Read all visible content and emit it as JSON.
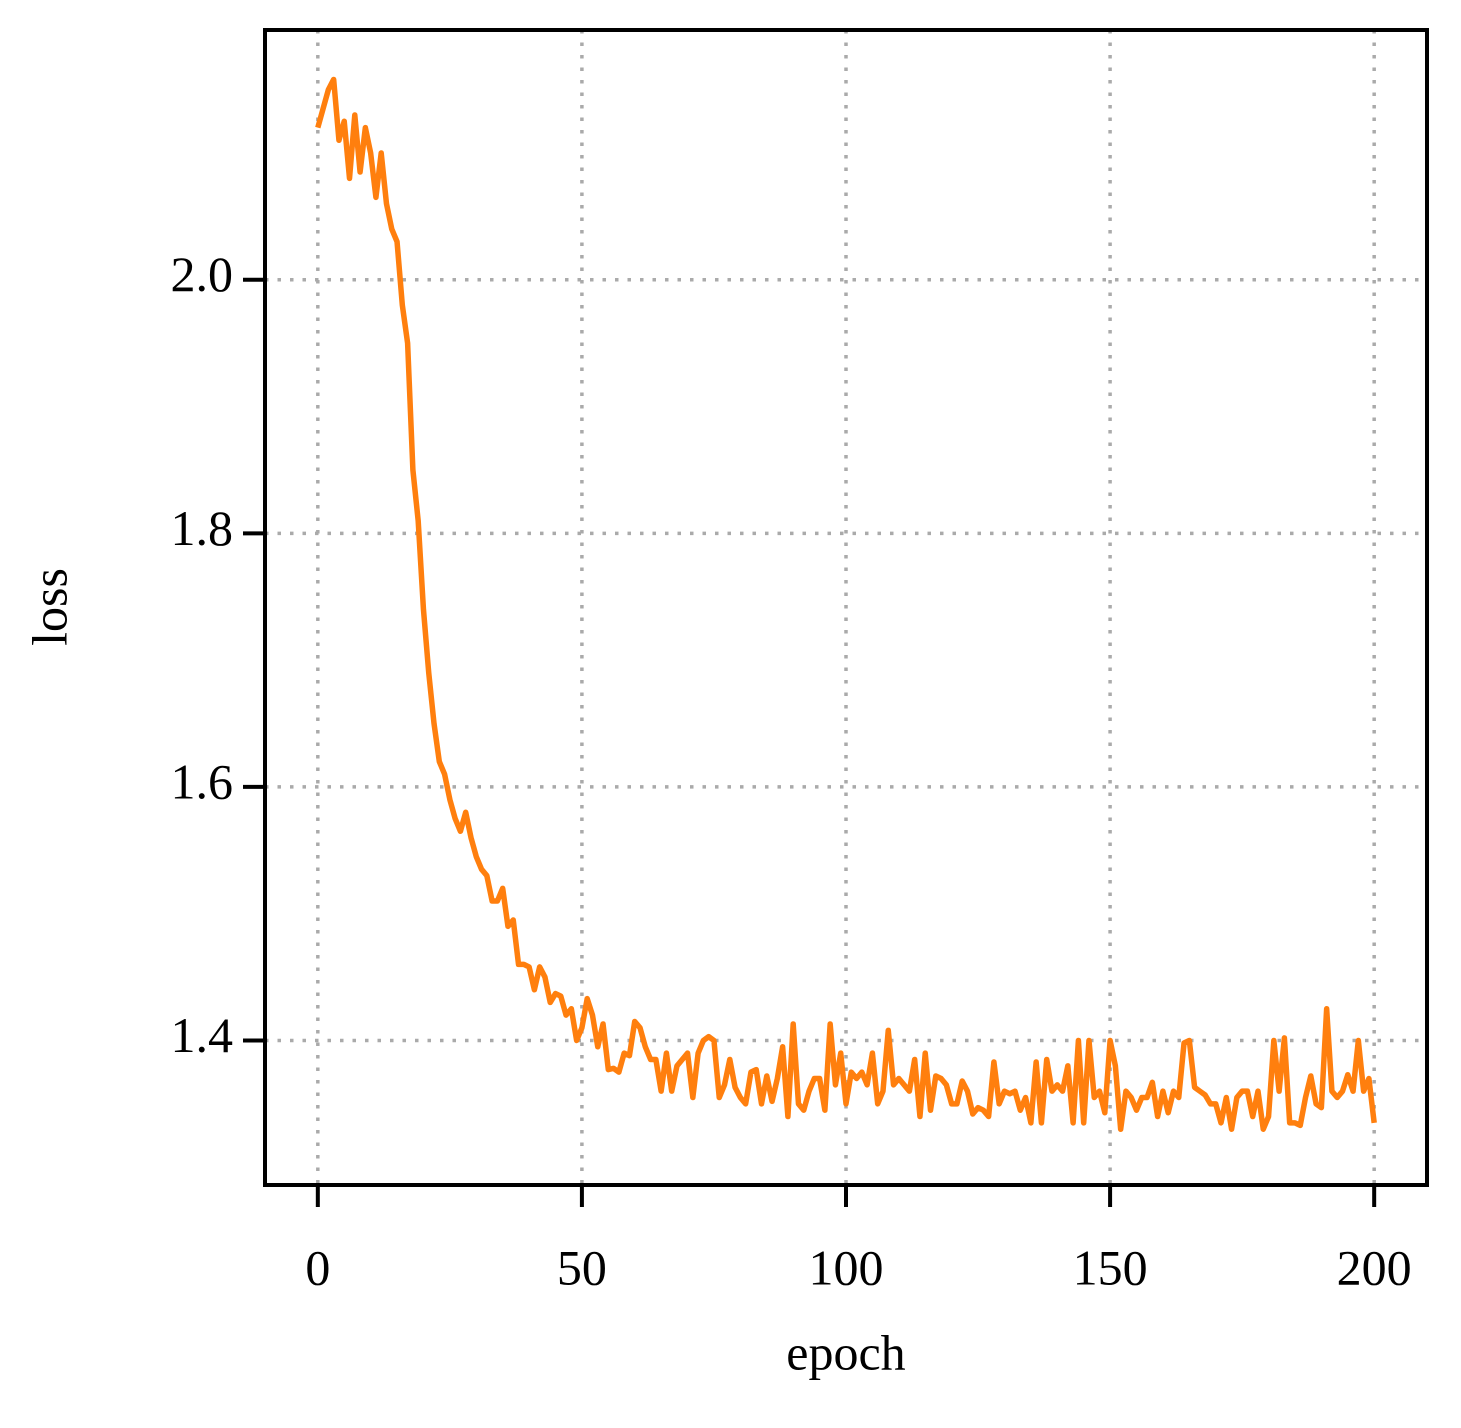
{
  "chart_data": {
    "type": "line",
    "xlabel": "epoch",
    "ylabel": "loss",
    "x": [
      0,
      1,
      2,
      3,
      4,
      5,
      6,
      7,
      8,
      9,
      10,
      11,
      12,
      13,
      14,
      15,
      16,
      17,
      18,
      19,
      20,
      21,
      22,
      23,
      24,
      25,
      26,
      27,
      28,
      29,
      30,
      31,
      32,
      33,
      34,
      35,
      36,
      37,
      38,
      39,
      40,
      41,
      42,
      43,
      44,
      45,
      46,
      47,
      48,
      49,
      50,
      51,
      52,
      53,
      54,
      55,
      56,
      57,
      58,
      59,
      60,
      61,
      62,
      63,
      64,
      65,
      66,
      67,
      68,
      69,
      70,
      71,
      72,
      73,
      74,
      75,
      76,
      77,
      78,
      79,
      80,
      81,
      82,
      83,
      84,
      85,
      86,
      87,
      88,
      89,
      90,
      91,
      92,
      93,
      94,
      95,
      96,
      97,
      98,
      99,
      100,
      101,
      102,
      103,
      104,
      105,
      106,
      107,
      108,
      109,
      110,
      111,
      112,
      113,
      114,
      115,
      116,
      117,
      118,
      119,
      120,
      121,
      122,
      123,
      124,
      125,
      126,
      127,
      128,
      129,
      130,
      131,
      132,
      133,
      134,
      135,
      136,
      137,
      138,
      139,
      140,
      141,
      142,
      143,
      144,
      145,
      146,
      147,
      148,
      149,
      150,
      151,
      152,
      153,
      154,
      155,
      156,
      157,
      158,
      159,
      160,
      161,
      162,
      163,
      164,
      165,
      166,
      167,
      168,
      169,
      170,
      171,
      172,
      173,
      174,
      175,
      176,
      177,
      178,
      179,
      180,
      181,
      182,
      183,
      184,
      185,
      186,
      187,
      188,
      189,
      190,
      191,
      192,
      193,
      194,
      195,
      196,
      197,
      198,
      199,
      200
    ],
    "series": [
      {
        "color": "#ff7f0e",
        "values": [
          2.12,
          2.135,
          2.15,
          2.158,
          2.11,
          2.125,
          2.08,
          2.13,
          2.085,
          2.12,
          2.1,
          2.065,
          2.1,
          2.06,
          2.04,
          2.03,
          1.98,
          1.95,
          1.85,
          1.81,
          1.74,
          1.69,
          1.65,
          1.62,
          1.61,
          1.59,
          1.575,
          1.565,
          1.58,
          1.56,
          1.545,
          1.535,
          1.53,
          1.51,
          1.51,
          1.52,
          1.49,
          1.495,
          1.46,
          1.46,
          1.458,
          1.44,
          1.458,
          1.45,
          1.43,
          1.437,
          1.435,
          1.42,
          1.425,
          1.4,
          1.41,
          1.433,
          1.42,
          1.395,
          1.413,
          1.377,
          1.378,
          1.375,
          1.39,
          1.388,
          1.415,
          1.41,
          1.395,
          1.385,
          1.385,
          1.36,
          1.39,
          1.36,
          1.38,
          1.385,
          1.39,
          1.355,
          1.39,
          1.4,
          1.403,
          1.4,
          1.355,
          1.365,
          1.385,
          1.363,
          1.355,
          1.35,
          1.375,
          1.377,
          1.35,
          1.372,
          1.352,
          1.37,
          1.395,
          1.34,
          1.413,
          1.35,
          1.345,
          1.36,
          1.37,
          1.37,
          1.345,
          1.413,
          1.365,
          1.39,
          1.35,
          1.375,
          1.37,
          1.375,
          1.365,
          1.39,
          1.35,
          1.36,
          1.408,
          1.365,
          1.37,
          1.365,
          1.36,
          1.385,
          1.34,
          1.39,
          1.345,
          1.372,
          1.37,
          1.365,
          1.35,
          1.35,
          1.368,
          1.36,
          1.342,
          1.347,
          1.345,
          1.34,
          1.383,
          1.35,
          1.36,
          1.358,
          1.36,
          1.345,
          1.355,
          1.335,
          1.383,
          1.335,
          1.385,
          1.36,
          1.365,
          1.36,
          1.38,
          1.335,
          1.4,
          1.335,
          1.4,
          1.355,
          1.36,
          1.343,
          1.4,
          1.38,
          1.33,
          1.36,
          1.355,
          1.345,
          1.355,
          1.355,
          1.367,
          1.34,
          1.36,
          1.343,
          1.36,
          1.355,
          1.398,
          1.4,
          1.363,
          1.36,
          1.357,
          1.35,
          1.35,
          1.335,
          1.355,
          1.33,
          1.355,
          1.36,
          1.36,
          1.34,
          1.36,
          1.33,
          1.34,
          1.4,
          1.36,
          1.402,
          1.335,
          1.335,
          1.333,
          1.355,
          1.372,
          1.35,
          1.347,
          1.425,
          1.36,
          1.355,
          1.36,
          1.373,
          1.36,
          1.4,
          1.36,
          1.37,
          1.335
        ]
      }
    ],
    "xlim": [
      -10,
      210
    ],
    "ylim": [
      1.286,
      2.197
    ],
    "xticks": [
      0,
      50,
      100,
      150,
      200
    ],
    "yticks": [
      {
        "value": 1.4,
        "label": "1.4"
      },
      {
        "value": 1.6,
        "label": "1.6"
      },
      {
        "value": 1.8,
        "label": "1.8"
      },
      {
        "value": 2.0,
        "label": "2.0"
      }
    ],
    "grid": true
  }
}
